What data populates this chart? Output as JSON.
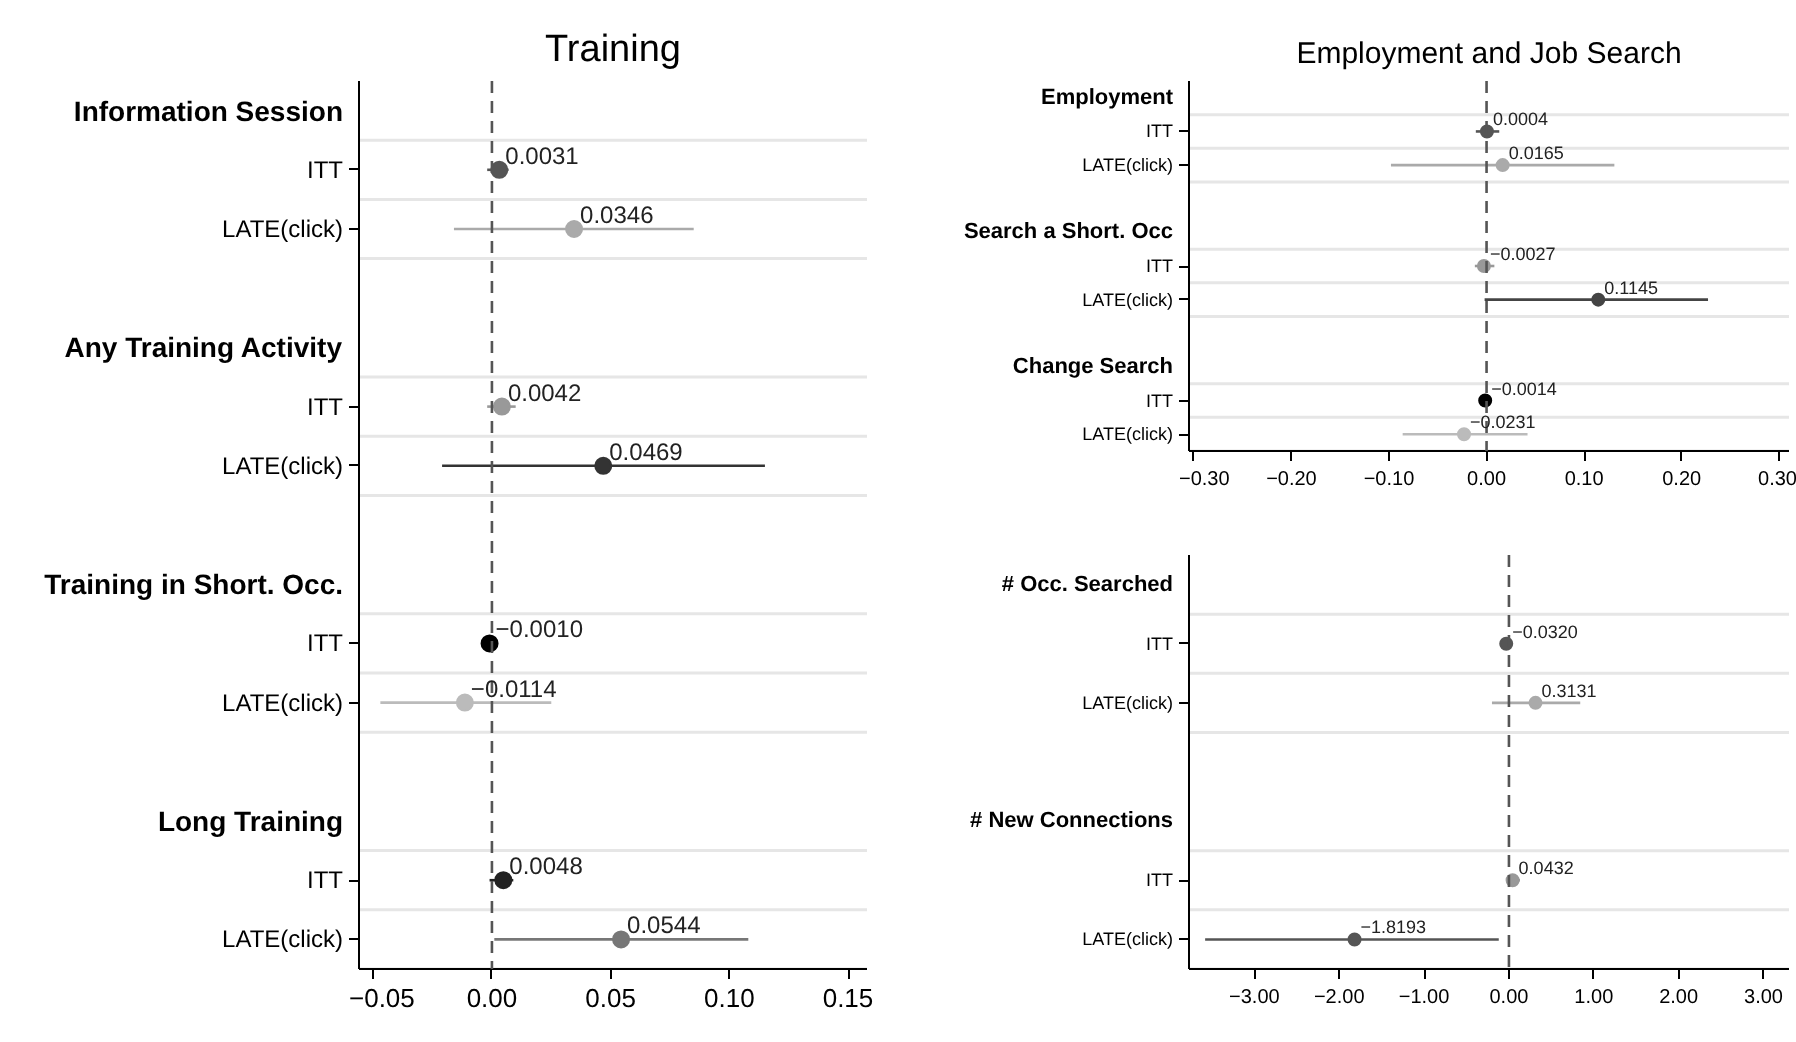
{
  "chart_data": [
    {
      "type": "scatter",
      "orientation": "horizontal",
      "title": "Training",
      "marker": "circle",
      "grid": "y",
      "categories": [
        "Information Session",
        "ITT",
        "LATE(click)",
        null,
        "Any Training Activity",
        "ITT",
        "LATE(click)",
        null,
        "Training in Short. Occ.",
        "ITT",
        "LATE(click)",
        null,
        "Long Training",
        "ITT",
        "LATE(click)"
      ],
      "values": [
        null,
        0.0031,
        0.0346,
        null,
        null,
        0.0042,
        0.0469,
        null,
        null,
        -0.001,
        -0.0114,
        null,
        null,
        0.0048,
        0.0544
      ],
      "errors": [
        null,
        [
          -0.002,
          0.007
        ],
        [
          -0.016,
          0.085
        ],
        null,
        null,
        [
          -0.002,
          0.01
        ],
        [
          -0.021,
          0.115
        ],
        null,
        null,
        [
          -0.003,
          0.001
        ],
        [
          -0.047,
          0.025
        ],
        null,
        null,
        [
          -0.001,
          0.009
        ],
        [
          0.001,
          0.108
        ]
      ],
      "colors": [
        null,
        "#555555",
        "#aaaaaa",
        null,
        null,
        "#999999",
        "#333333",
        null,
        null,
        "#000000",
        "#bbbbbb",
        null,
        null,
        "#222222",
        "#777777"
      ],
      "value_labels": [
        null,
        "0.0031",
        "0.0346",
        null,
        null,
        "0.0042",
        "0.0469",
        null,
        null,
        "−0.0010",
        "−0.0114",
        null,
        null,
        "0.0048",
        "0.0544"
      ],
      "xlim": [
        -0.056,
        0.158
      ],
      "xticks": [
        {
          "value": -0.05,
          "label": "−0.05"
        },
        {
          "value": 0,
          "label": "0.00"
        },
        {
          "value": 0.05,
          "label": "0.05"
        },
        {
          "value": 0.1,
          "label": "0.10"
        },
        {
          "value": 0.15,
          "label": "0.15"
        }
      ],
      "ref_lines": [
        {
          "axis": "x",
          "value": 0,
          "line_style": "dashed",
          "color": "#555555"
        }
      ]
    },
    {
      "type": "scatter",
      "orientation": "horizontal",
      "title": "Employment and Job Search",
      "marker": "circle",
      "grid": "y",
      "categories": [
        "Employment",
        "ITT",
        "LATE(click)",
        null,
        "Search a Short. Occ",
        "ITT",
        "LATE(click)",
        null,
        "Change Search",
        "ITT",
        "LATE(click)"
      ],
      "values": [
        null,
        0.0004,
        0.0165,
        null,
        null,
        -0.0027,
        0.1145,
        null,
        null,
        -0.0014,
        -0.0231
      ],
      "errors": [
        null,
        [
          -0.011,
          0.013
        ],
        [
          -0.098,
          0.131
        ],
        null,
        null,
        [
          -0.012,
          0.008
        ],
        [
          -0.002,
          0.227
        ],
        null,
        null,
        [
          -0.004,
          0.002
        ],
        [
          -0.086,
          0.042
        ]
      ],
      "colors": [
        null,
        "#555555",
        "#aaaaaa",
        null,
        null,
        "#999999",
        "#444444",
        null,
        null,
        "#000000",
        "#bbbbbb"
      ],
      "value_labels": [
        null,
        "0.0004",
        "0.0165",
        null,
        null,
        "−0.0027",
        "0.1145",
        null,
        null,
        "−0.0014",
        "−0.0231"
      ],
      "xlim": [
        -0.305,
        0.31
      ],
      "xticks": [
        {
          "value": -0.3,
          "label": "−0.30"
        },
        {
          "value": -0.2,
          "label": "−0.20"
        },
        {
          "value": -0.1,
          "label": "−0.10"
        },
        {
          "value": 0,
          "label": "0.00"
        },
        {
          "value": 0.1,
          "label": "0.10"
        },
        {
          "value": 0.2,
          "label": "0.20"
        },
        {
          "value": 0.3,
          "label": "0.30"
        }
      ],
      "ref_lines": [
        {
          "axis": "x",
          "value": 0,
          "line_style": "dashed",
          "color": "#555555"
        }
      ]
    },
    {
      "type": "scatter",
      "orientation": "horizontal",
      "marker": "circle",
      "grid": "y",
      "categories": [
        "# Occ. Searched",
        "ITT",
        "LATE(click)",
        null,
        "# New Connections",
        "ITT",
        "LATE(click)"
      ],
      "values": [
        null,
        -0.032,
        0.3131,
        null,
        null,
        0.0432,
        -1.8193
      ],
      "errors": [
        null,
        [
          -0.07,
          0.02
        ],
        [
          -0.2,
          0.84
        ],
        null,
        null,
        [
          -0.02,
          0.13
        ],
        [
          -3.58,
          -0.12
        ]
      ],
      "colors": [
        null,
        "#555555",
        "#aaaaaa",
        null,
        null,
        "#999999",
        "#555555"
      ],
      "value_labels": [
        null,
        "−0.0320",
        "0.3131",
        null,
        null,
        "0.0432",
        "−1.8193"
      ],
      "xlim": [
        -3.77,
        3.3
      ],
      "xticks": [
        {
          "value": -3,
          "label": "−3.00"
        },
        {
          "value": -2,
          "label": "−2.00"
        },
        {
          "value": -1,
          "label": "−1.00"
        },
        {
          "value": 0,
          "label": "0.00"
        },
        {
          "value": 1,
          "label": "1.00"
        },
        {
          "value": 2,
          "label": "2.00"
        },
        {
          "value": 3,
          "label": "3.00"
        }
      ],
      "ref_lines": [
        {
          "axis": "x",
          "value": 0,
          "line_style": "dashed",
          "color": "#555555"
        }
      ]
    }
  ]
}
